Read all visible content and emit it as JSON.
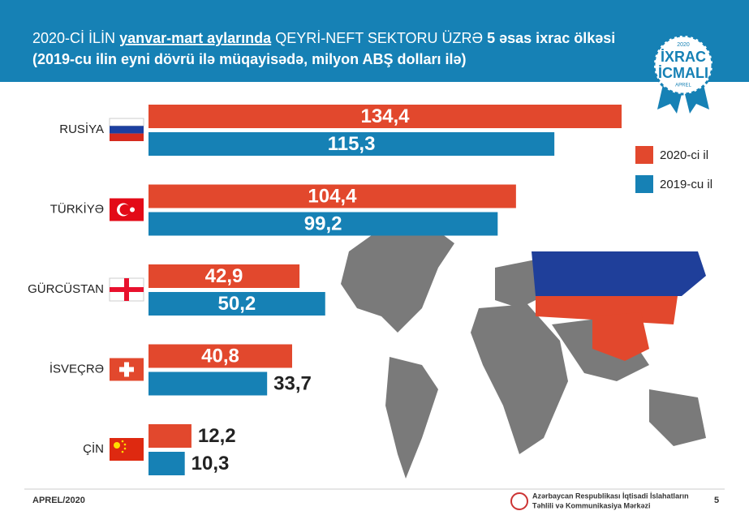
{
  "chart_data": {
    "type": "hbar",
    "title": [
      "2020-Cİ İLİN",
      "yanvar-mart aylarında",
      "QEYRİ-NEFT SEKTORU ÜZRƏ",
      "5 əsas ixrac ölkəsi"
    ],
    "subtitle": "(2019-cu ilin eyni dövrü ilə müqayisədə, milyon ABŞ dolları ilə)",
    "categories": [
      "RUSİYA",
      "TÜRKİYƏ",
      "GÜRCÜSTAN",
      "İSVEÇRƏ",
      "ÇİN"
    ],
    "series": [
      {
        "name": "2020-ci il",
        "color": "#e2482d",
        "values": [
          134.4,
          104.4,
          42.9,
          40.8,
          12.2
        ],
        "value_labels": [
          "134,4",
          "104,4",
          "42,9",
          "40,8",
          "12,2"
        ]
      },
      {
        "name": "2019-cu il",
        "color": "#1681b5",
        "values": [
          115.3,
          99.2,
          50.2,
          33.7,
          10.3
        ],
        "value_labels": [
          "115,3",
          "99,2",
          "50,2",
          "33,7",
          "10,3"
        ]
      }
    ]
  },
  "badge": {
    "year": "2020",
    "line1": "İXRAC",
    "line2": "İCMALI",
    "month": "APREL"
  },
  "footer": {
    "date": "APREL/2020",
    "org1": "Azərbaycan Respublikası İqtisadi İslahatların",
    "org2": "Təhlili və Kommunikasiya Mərkəzi",
    "page": "5"
  }
}
